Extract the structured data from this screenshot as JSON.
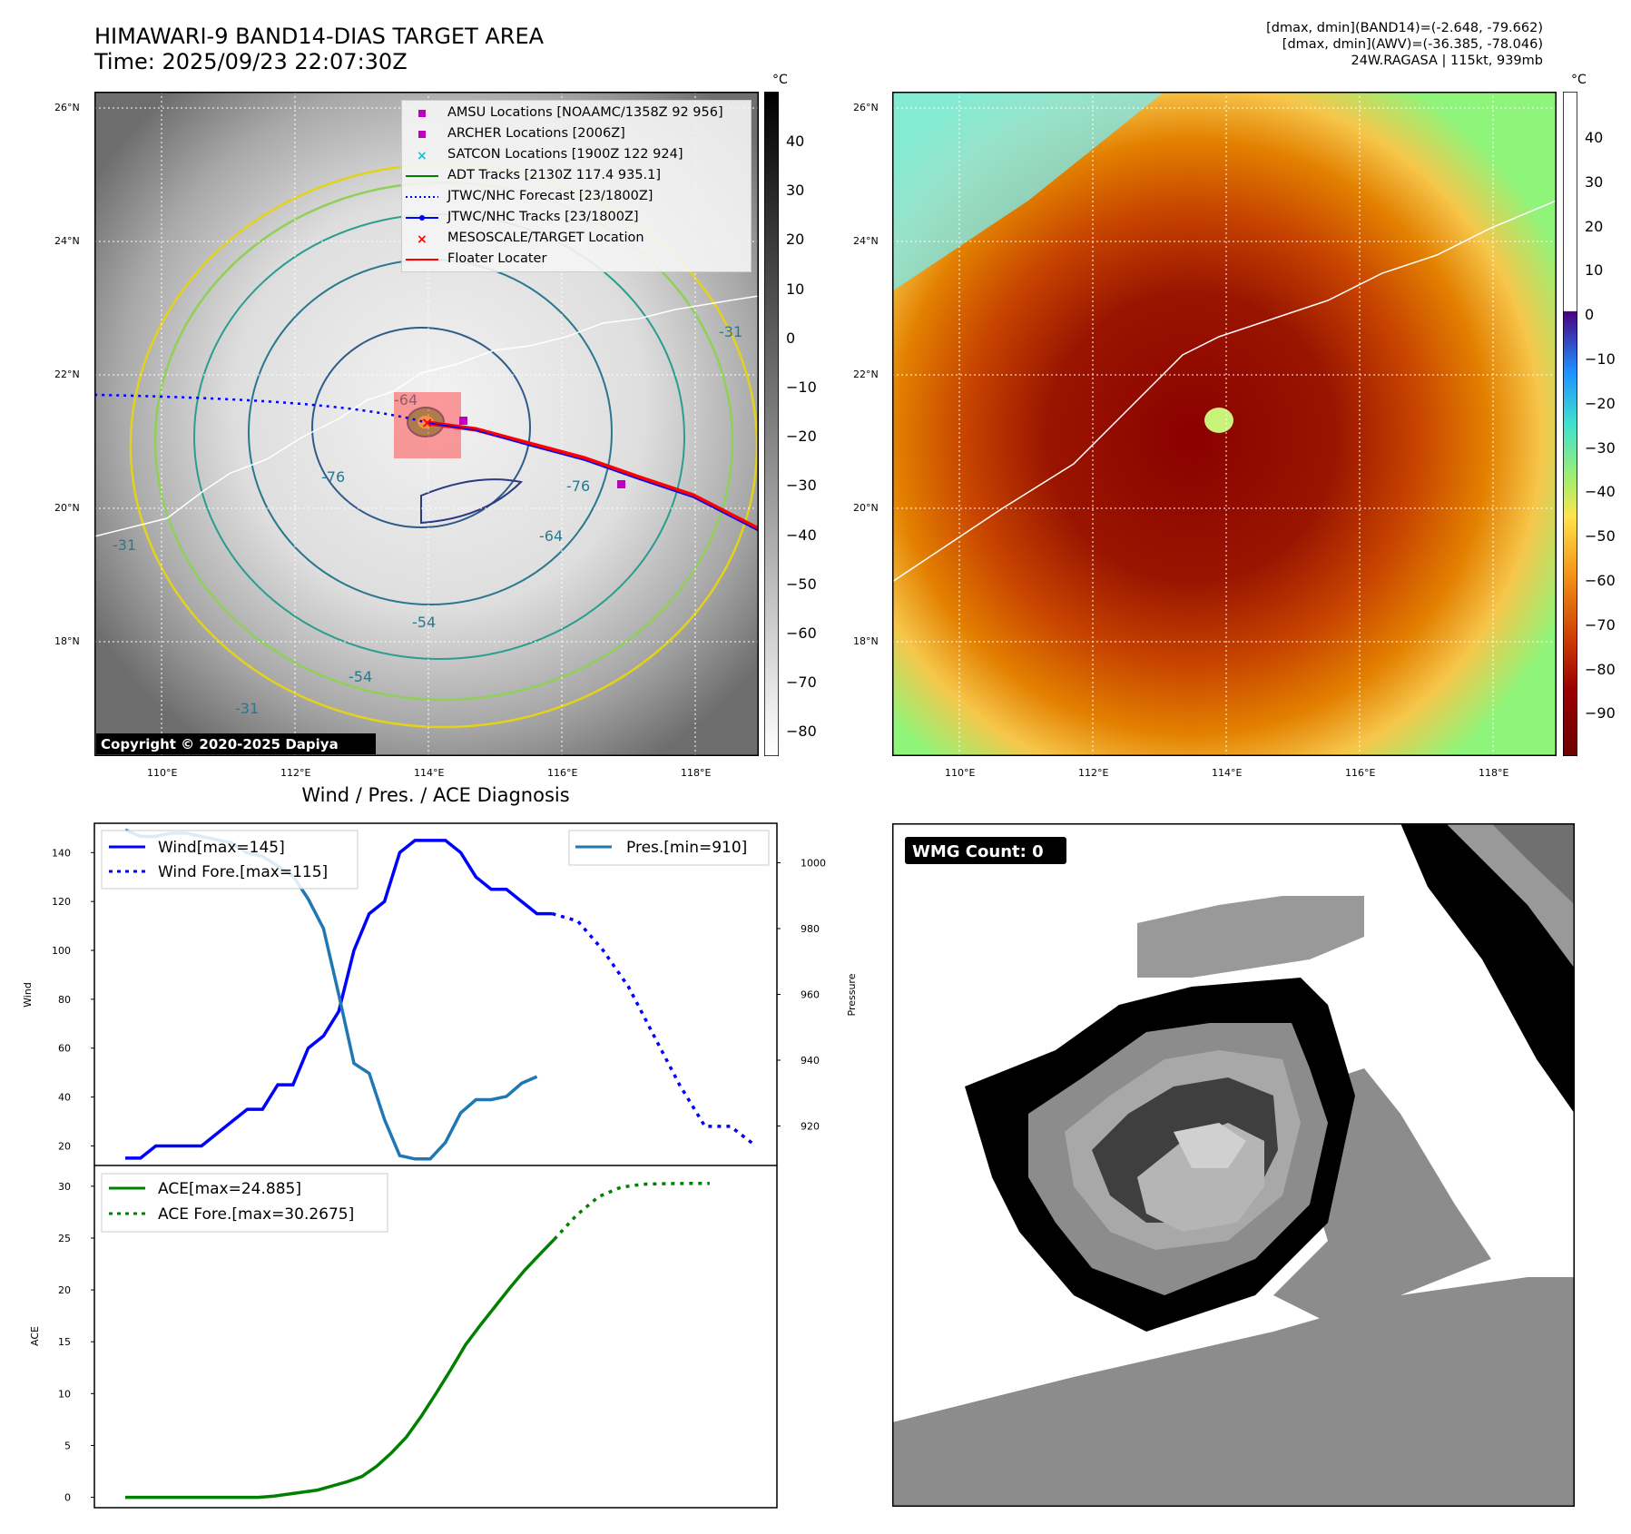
{
  "header": {
    "title_line1": "HIMAWARI-9 BAND14-DIAS TARGET AREA",
    "title_line2": "Time: 2025/09/23 22:07:30Z",
    "info_line1": "[dmax, dmin](BAND14)=(-2.648, -79.662)",
    "info_line2": "[dmax, dmin](AWV)=(-36.385, -78.046)",
    "info_line3": "24W.RAGASA | 115kt, 939mb"
  },
  "map_left": {
    "lat_labels": [
      "26°N",
      "24°N",
      "22°N",
      "20°N",
      "18°N"
    ],
    "lon_labels": [
      "110°E",
      "112°E",
      "114°E",
      "116°E",
      "118°E"
    ],
    "copyright": "Copyright © 2020-2025 Dapiya",
    "contour_labels": [
      "-31",
      "-54",
      "-54",
      "-31",
      "-64",
      "-76",
      "-76",
      "-64",
      "-31"
    ],
    "legend": [
      {
        "label": "AMSU Locations [NOAAMC/1358Z 92 956]",
        "color": "#bf00bf",
        "marker": "square"
      },
      {
        "label": "ARCHER Locations [2006Z]",
        "color": "#bf00bf",
        "marker": "square"
      },
      {
        "label": "SATCON Locations [1900Z 122 924]",
        "color": "#17becf",
        "marker": "x"
      },
      {
        "label": "ADT Tracks [2130Z 117.4 935.1]",
        "color": "#008000",
        "marker": "line"
      },
      {
        "label": "JTWC/NHC Forecast [23/1800Z]",
        "color": "#0000ff",
        "marker": "dotted"
      },
      {
        "label": "JTWC/NHC Tracks [23/1800Z]",
        "color": "#0000ff",
        "marker": "line-dot"
      },
      {
        "label": "MESOSCALE/TARGET Location",
        "color": "#ff0000",
        "marker": "x"
      },
      {
        "label": "Floater Locater",
        "color": "#ff0000",
        "marker": "line"
      }
    ],
    "colorbar": {
      "unit": "°C",
      "ticks": [
        "40",
        "30",
        "20",
        "10",
        "0",
        "−10",
        "−20",
        "−30",
        "−40",
        "−50",
        "−60",
        "−70",
        "−80"
      ]
    }
  },
  "map_right": {
    "lat_labels": [
      "26°N",
      "24°N",
      "22°N",
      "20°N",
      "18°N"
    ],
    "lon_labels": [
      "110°E",
      "112°E",
      "114°E",
      "116°E",
      "118°E"
    ],
    "colorbar": {
      "unit": "°C",
      "ticks": [
        "40",
        "30",
        "20",
        "10",
        "0",
        "−10",
        "−20",
        "−30",
        "−40",
        "−50",
        "−60",
        "−70",
        "−80",
        "−90"
      ]
    }
  },
  "chart_data": [
    {
      "type": "line",
      "title": "Wind / Pres. / ACE Diagnosis",
      "ylabel": "Wind",
      "ylabel_right": "Pressure",
      "ylim": [
        12,
        152
      ],
      "ylim_right": [
        908,
        1012
      ],
      "yticks": [
        20,
        40,
        60,
        80,
        100,
        120,
        140
      ],
      "yticks_right": [
        920,
        940,
        960,
        980,
        1000
      ],
      "series": [
        {
          "name": "Wind[max=145]",
          "color": "#0000ff",
          "style": "solid",
          "axis": "left",
          "values": [
            15,
            15,
            20,
            20,
            20,
            20,
            25,
            30,
            35,
            35,
            45,
            45,
            60,
            65,
            75,
            100,
            115,
            120,
            140,
            145,
            145,
            145,
            140,
            130,
            125,
            125,
            120,
            115,
            115
          ]
        },
        {
          "name": "Wind Fore.[max=115]",
          "color": "#0000ff",
          "style": "dotted",
          "axis": "left",
          "start": 28,
          "step": 1.67,
          "values": [
            115,
            112,
            100,
            85,
            65,
            45,
            28,
            28,
            20
          ]
        },
        {
          "name": "Pres.[min=910]",
          "color": "#1f77b4",
          "style": "solid",
          "axis": "right",
          "values": [
            1010,
            1008,
            1008,
            1009,
            1009,
            1008,
            1007,
            1006,
            1003,
            1002,
            999,
            996,
            989,
            980,
            960,
            939,
            936,
            922,
            911,
            910,
            910,
            915,
            924,
            928,
            928,
            929,
            933,
            935
          ]
        }
      ],
      "legend_left": [
        "Wind[max=145]",
        "Wind Fore.[max=115]"
      ],
      "legend_right": [
        "Pres.[min=910]"
      ]
    },
    {
      "type": "line",
      "ylabel": "ACE",
      "ylim": [
        -1,
        32
      ],
      "yticks": [
        0,
        5,
        10,
        15,
        20,
        25,
        30
      ],
      "series": [
        {
          "name": "ACE[max=24.885]",
          "color": "#008000",
          "style": "solid",
          "values": [
            0,
            0,
            0,
            0,
            0,
            0,
            0,
            0,
            0,
            0,
            0.1,
            0.3,
            0.5,
            0.7,
            1.1,
            1.5,
            2.0,
            3.0,
            4.3,
            5.8,
            7.8,
            10.0,
            12.3,
            14.7,
            16.6,
            18.4,
            20.2,
            21.9,
            23.4,
            24.885
          ]
        },
        {
          "name": "ACE Fore.[max=30.2675]",
          "color": "#008000",
          "style": "dotted",
          "start": 29,
          "step": 1.5,
          "values": [
            24.885,
            27.2,
            29.0,
            29.9,
            30.2,
            30.25,
            30.27,
            30.2675
          ]
        }
      ]
    }
  ],
  "wmg_panel": {
    "label": "WMG Count: 0"
  }
}
